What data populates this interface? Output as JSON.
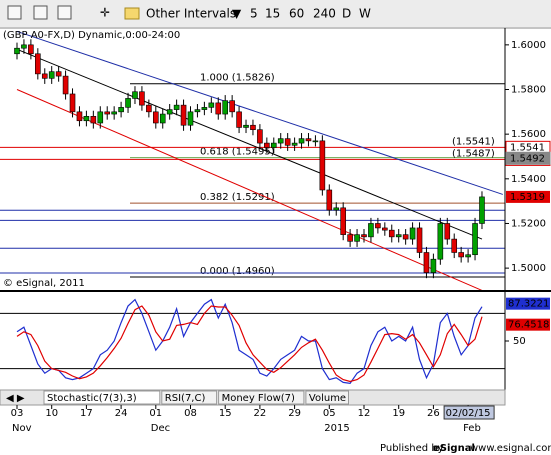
{
  "toolbar": {
    "interval_menu": "Other Intervals",
    "intervals": [
      "5",
      "15",
      "60",
      "240",
      "D",
      "W"
    ]
  },
  "chart_data": [
    {
      "type": "candlestick",
      "title": "(GBP A0-FX,D) Dynamic,0:00-24:00",
      "watermark": "© eSignal, 2011",
      "categories": [
        "03",
        null,
        null,
        null,
        null,
        "10",
        null,
        null,
        null,
        null,
        "17",
        null,
        null,
        null,
        null,
        "24",
        null,
        null,
        null,
        null,
        "01",
        null,
        null,
        null,
        null,
        "08",
        null,
        null,
        null,
        null,
        "15",
        null,
        null,
        null,
        null,
        "22",
        null,
        null,
        null,
        null,
        "29",
        null,
        null,
        null,
        null,
        "05",
        null,
        null,
        null,
        null,
        "12",
        null,
        null,
        null,
        null,
        "19",
        null,
        null,
        null,
        null,
        "26",
        null,
        null,
        null,
        null,
        "02/02/15",
        null,
        null
      ],
      "month_row": [
        "Nov",
        null,
        null,
        null,
        null,
        null,
        null,
        null,
        null,
        null,
        null,
        null,
        null,
        null,
        null,
        null,
        null,
        null,
        null,
        null,
        "Dec",
        null,
        null,
        null,
        null,
        null,
        null,
        null,
        null,
        null,
        null,
        null,
        null,
        null,
        null,
        null,
        null,
        null,
        null,
        null,
        null,
        null,
        null,
        null,
        null,
        "2015",
        null,
        null,
        null,
        null,
        null,
        null,
        null,
        null,
        null,
        null,
        null,
        null,
        null,
        null,
        null,
        null,
        null,
        null,
        null,
        "Feb",
        null,
        null
      ],
      "open": [
        1.596,
        1.5985,
        1.6,
        1.596,
        1.587,
        1.585,
        1.588,
        1.586,
        1.578,
        1.57,
        1.566,
        1.568,
        1.565,
        1.57,
        1.569,
        1.57,
        1.572,
        1.576,
        1.579,
        1.573,
        1.57,
        1.565,
        1.569,
        1.571,
        1.573,
        1.564,
        1.57,
        1.571,
        1.572,
        1.574,
        1.569,
        1.575,
        1.57,
        1.563,
        1.564,
        1.562,
        1.556,
        1.554,
        1.556,
        1.558,
        1.555,
        1.556,
        1.558,
        1.557,
        1.557,
        1.535,
        1.526,
        1.527,
        1.515,
        1.512,
        1.515,
        1.514,
        1.52,
        1.518,
        1.517,
        1.514,
        1.515,
        1.513,
        1.518,
        1.507,
        1.498,
        1.504,
        1.52,
        1.513,
        1.507,
        1.505,
        1.506,
        1.52
      ],
      "high": [
        1.601,
        1.6025,
        1.6025,
        1.5985,
        1.5895,
        1.5905,
        1.5905,
        1.5885,
        1.5805,
        1.5725,
        1.5705,
        1.5705,
        1.5725,
        1.5725,
        1.5725,
        1.5745,
        1.5785,
        1.5815,
        1.5815,
        1.5755,
        1.5725,
        1.5715,
        1.5735,
        1.5755,
        1.5755,
        1.5725,
        1.5735,
        1.5745,
        1.5765,
        1.5765,
        1.5775,
        1.5775,
        1.5725,
        1.5665,
        1.5665,
        1.5645,
        1.5585,
        1.5585,
        1.5605,
        1.5605,
        1.5585,
        1.5605,
        1.5605,
        1.5595,
        1.5595,
        1.5375,
        1.5295,
        1.5295,
        1.5175,
        1.5175,
        1.5175,
        1.5225,
        1.5225,
        1.5205,
        1.5195,
        1.5175,
        1.5175,
        1.5205,
        1.5205,
        1.5095,
        1.5065,
        1.5225,
        1.5225,
        1.5155,
        1.5095,
        1.5085,
        1.5225,
        1.5344
      ],
      "low": [
        1.5935,
        1.596,
        1.5935,
        1.5845,
        1.5825,
        1.5825,
        1.5835,
        1.5755,
        1.5675,
        1.5635,
        1.5635,
        1.5625,
        1.5625,
        1.5665,
        1.5665,
        1.5675,
        1.5695,
        1.5735,
        1.5705,
        1.5675,
        1.5625,
        1.5625,
        1.5665,
        1.5685,
        1.5615,
        1.5615,
        1.5675,
        1.5685,
        1.5695,
        1.5665,
        1.5665,
        1.5675,
        1.5605,
        1.5605,
        1.5595,
        1.5535,
        1.5515,
        1.5515,
        1.5535,
        1.5525,
        1.5525,
        1.5535,
        1.5545,
        1.5545,
        1.5325,
        1.5235,
        1.5235,
        1.5125,
        1.5095,
        1.5095,
        1.5115,
        1.5115,
        1.5155,
        1.5145,
        1.5115,
        1.5115,
        1.5105,
        1.5105,
        1.5045,
        1.4955,
        1.4955,
        1.5015,
        1.5105,
        1.5045,
        1.5025,
        1.5025,
        1.5035,
        1.5175
      ],
      "close": [
        1.5985,
        1.6,
        1.596,
        1.587,
        1.585,
        1.588,
        1.586,
        1.578,
        1.57,
        1.566,
        1.568,
        1.565,
        1.57,
        1.569,
        1.57,
        1.572,
        1.576,
        1.579,
        1.573,
        1.57,
        1.565,
        1.569,
        1.571,
        1.573,
        1.564,
        1.57,
        1.571,
        1.572,
        1.574,
        1.569,
        1.575,
        1.57,
        1.563,
        1.564,
        1.562,
        1.556,
        1.554,
        1.556,
        1.558,
        1.555,
        1.556,
        1.558,
        1.557,
        1.557,
        1.535,
        1.526,
        1.527,
        1.515,
        1.512,
        1.515,
        1.514,
        1.52,
        1.518,
        1.517,
        1.514,
        1.515,
        1.513,
        1.518,
        1.507,
        1.498,
        1.504,
        1.52,
        1.513,
        1.507,
        1.505,
        1.506,
        1.52,
        1.5319
      ],
      "up_color": "#00a000",
      "down_color": "#e00000",
      "ylim": [
        1.4902,
        1.6071
      ],
      "yticks": [
        {
          "value": 1.5,
          "label": "1.5000"
        },
        {
          "value": 1.52,
          "label": "1.5200"
        },
        {
          "value": 1.54,
          "label": "1.5400"
        },
        {
          "value": 1.56,
          "label": "1.5600"
        },
        {
          "value": 1.58,
          "label": "1.5800"
        },
        {
          "value": 1.6,
          "label": "1.6000"
        }
      ],
      "fib_levels": [
        {
          "label": "1.000 (1.5826)",
          "value": 1.5826,
          "color": "#000000"
        },
        {
          "label": "0.618 (1.5495)",
          "value": 1.5495,
          "color": "#6aa84f"
        },
        {
          "label": "0.382 (1.5291)",
          "value": 1.5291,
          "color": "#a0522d"
        },
        {
          "label": "0.000 (1.4960)",
          "value": 1.496,
          "color": "#000000"
        }
      ],
      "hlines": [
        {
          "value": 1.5541,
          "color": "#e00000",
          "label": "(1.5541)"
        },
        {
          "value": 1.5487,
          "color": "#e00000",
          "label": "(1.5487)"
        },
        {
          "value": 1.5259,
          "color": "#1f2fa8"
        },
        {
          "value": 1.5214,
          "color": "#1f2fa8"
        },
        {
          "value": 1.5089,
          "color": "#1f2fa8"
        },
        {
          "value": 1.4978,
          "color": "#1f2fa8"
        }
      ],
      "price_markers": [
        {
          "value": 1.5541,
          "color": "#e00000",
          "filled": false
        },
        {
          "value": 1.5487,
          "color": "#e00000",
          "filled": false
        },
        {
          "value": 1.5492,
          "color": "#888888",
          "filled": true
        }
      ],
      "trendlines": [
        {
          "color": "#1f2fa8",
          "points": [
            [
              0,
              1.606
            ],
            [
              70,
              1.533
            ]
          ]
        },
        {
          "color": "#000000",
          "points": [
            [
              0,
              1.598
            ],
            [
              67,
              1.513
            ]
          ]
        },
        {
          "color": "#e00000",
          "points": [
            [
              0,
              1.58
            ],
            [
              67,
              1.49
            ]
          ]
        }
      ]
    },
    {
      "type": "line",
      "series": [
        {
          "name": "%K",
          "color": "#1f2fd0",
          "values": [
            60,
            65,
            45,
            25,
            15,
            20,
            18,
            10,
            8,
            10,
            15,
            20,
            35,
            40,
            50,
            70,
            88,
            95,
            80,
            60,
            40,
            50,
            65,
            85,
            55,
            70,
            80,
            90,
            95,
            75,
            90,
            70,
            40,
            35,
            30,
            15,
            12,
            20,
            30,
            35,
            40,
            55,
            50,
            50,
            20,
            8,
            10,
            5,
            4,
            15,
            20,
            45,
            60,
            65,
            50,
            55,
            50,
            65,
            30,
            10,
            25,
            70,
            80,
            55,
            35,
            45,
            75,
            87.3221
          ]
        },
        {
          "name": "%D",
          "color": "#e00000",
          "values": [
            55,
            60,
            57,
            45,
            28,
            20,
            18,
            16,
            12,
            9,
            11,
            15,
            23,
            32,
            42,
            53,
            69,
            84,
            88,
            78,
            60,
            50,
            52,
            67,
            68,
            70,
            68,
            80,
            88,
            87,
            87,
            78,
            67,
            48,
            35,
            27,
            19,
            16,
            21,
            28,
            35,
            43,
            48,
            52,
            40,
            26,
            13,
            8,
            6,
            8,
            13,
            27,
            42,
            57,
            58,
            57,
            52,
            57,
            48,
            35,
            22,
            35,
            58,
            68,
            57,
            45,
            52,
            76.4518
          ]
        }
      ],
      "ylim": [
        0,
        100
      ],
      "yticks": [
        50
      ],
      "levels": [
        20,
        80
      ]
    }
  ],
  "tabs": [
    "Stochastic(7(3),3)",
    "RSI(7,C)",
    "Money Flow(7)",
    "Volume"
  ],
  "footer": {
    "text": "Published by",
    "brand": "eSignal",
    "url": "www.esignal.com"
  }
}
